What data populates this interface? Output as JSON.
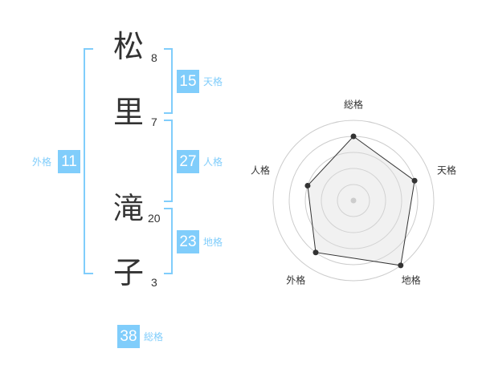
{
  "name": [
    {
      "char": "松",
      "strokes": "8"
    },
    {
      "char": "里",
      "strokes": "7"
    },
    {
      "char": "滝",
      "strokes": "20"
    },
    {
      "char": "子",
      "strokes": "3"
    }
  ],
  "kakusu": {
    "tenkaku": {
      "value": "15",
      "label": "天格"
    },
    "jinkaku": {
      "value": "27",
      "label": "人格"
    },
    "chikaku": {
      "value": "23",
      "label": "地格"
    },
    "gaikaku": {
      "value": "11",
      "label": "外格"
    },
    "soukaku": {
      "value": "38",
      "label": "総格"
    }
  },
  "accent_color": "#80cdfb",
  "chart_data": {
    "type": "radar",
    "axes": [
      "総格",
      "天格",
      "地格",
      "外格",
      "人格"
    ],
    "values": [
      4,
      4,
      5,
      4,
      3
    ],
    "range": [
      0,
      5
    ],
    "rings": 5
  }
}
